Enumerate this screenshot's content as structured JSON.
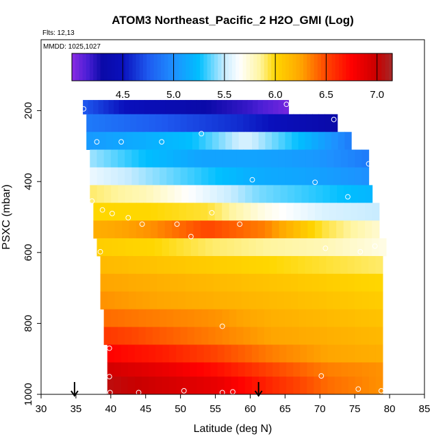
{
  "chart_data": {
    "type": "heatmap",
    "title": "ATOM3 Northeast_Pacific_2 H2O_GMI (Log)",
    "annotations": {
      "flights": "Flts: 12,13",
      "dates": "MMDD: 1025,1027"
    },
    "xlabel": "Latitude (deg N)",
    "ylabel": "PSXC (mbar)",
    "xlim": [
      30,
      85
    ],
    "ylim": [
      1000,
      0
    ],
    "x_ticks": [
      "30",
      "35",
      "40",
      "45",
      "50",
      "55",
      "60",
      "65",
      "70",
      "75",
      "80",
      "85"
    ],
    "y_ticks": [
      "200",
      "400",
      "600",
      "800",
      "1000"
    ],
    "colorbar": {
      "min": 4.0,
      "max": 7.15,
      "ticks": [
        "4.5",
        "5.0",
        "5.5",
        "6.0",
        "6.5",
        "7.0"
      ],
      "stops": [
        {
          "v": 4.0,
          "c": "#8a2be2"
        },
        {
          "v": 4.15,
          "c": "#4b1fd6"
        },
        {
          "v": 4.3,
          "c": "#0a0aa8"
        },
        {
          "v": 4.5,
          "c": "#0a10bc"
        },
        {
          "v": 4.75,
          "c": "#1e5af0"
        },
        {
          "v": 5.0,
          "c": "#1e90ff"
        },
        {
          "v": 5.25,
          "c": "#00bfff"
        },
        {
          "v": 5.5,
          "c": "#c8ecff"
        },
        {
          "v": 5.65,
          "c": "#ffffff"
        },
        {
          "v": 5.85,
          "c": "#fff5a0"
        },
        {
          "v": 6.0,
          "c": "#ffd700"
        },
        {
          "v": 6.25,
          "c": "#ffa500"
        },
        {
          "v": 6.5,
          "c": "#ff4500"
        },
        {
          "v": 6.75,
          "c": "#ff0000"
        },
        {
          "v": 7.0,
          "c": "#c80000"
        },
        {
          "v": 7.15,
          "c": "#a52a2a"
        }
      ]
    },
    "rows": [
      {
        "p_top": 170,
        "p_bot": 210,
        "lat_min": 36.0,
        "lat_max": 65.5,
        "values": [
          4.75,
          4.5,
          4.4,
          4.3,
          4.2,
          4.05
        ]
      },
      {
        "p_top": 210,
        "p_bot": 260,
        "lat_min": 36.5,
        "lat_max": 72.5,
        "values": [
          4.9,
          4.8,
          4.7,
          4.6,
          4.45,
          4.3
        ]
      },
      {
        "p_top": 260,
        "p_bot": 310,
        "lat_min": 36.5,
        "lat_max": 74.5,
        "values": [
          5.05,
          5.15,
          5.25,
          5.55,
          5.25,
          4.9
        ]
      },
      {
        "p_top": 310,
        "p_bot": 360,
        "lat_min": 37.0,
        "lat_max": 77.0,
        "values": [
          5.45,
          5.25,
          5.1,
          5.1,
          5.05,
          4.9
        ]
      },
      {
        "p_top": 360,
        "p_bot": 410,
        "lat_min": 37.0,
        "lat_max": 77.0,
        "values": [
          5.6,
          5.45,
          5.3,
          5.15,
          5.1,
          5.0
        ]
      },
      {
        "p_top": 410,
        "p_bot": 460,
        "lat_min": 37.0,
        "lat_max": 77.5,
        "values": [
          5.9,
          5.8,
          5.6,
          5.4,
          5.3,
          5.2
        ]
      },
      {
        "p_top": 460,
        "p_bot": 510,
        "lat_min": 37.5,
        "lat_max": 78.5,
        "values": [
          6.0,
          6.0,
          5.95,
          5.7,
          5.55,
          5.5
        ]
      },
      {
        "p_top": 510,
        "p_bot": 560,
        "lat_min": 37.5,
        "lat_max": 78.5,
        "values": [
          6.2,
          6.3,
          6.5,
          6.35,
          5.95,
          5.75
        ]
      },
      {
        "p_top": 560,
        "p_bot": 610,
        "lat_min": 38.0,
        "lat_max": 79.5,
        "values": [
          6.05,
          6.0,
          5.9,
          5.85,
          5.8,
          5.7
        ]
      },
      {
        "p_top": 610,
        "p_bot": 660,
        "lat_min": 38.5,
        "lat_max": 79.0,
        "values": [
          6.15,
          6.1,
          6.05,
          6.0,
          5.95,
          5.9
        ]
      },
      {
        "p_top": 660,
        "p_bot": 710,
        "lat_min": 38.5,
        "lat_max": 79.0,
        "values": [
          6.25,
          6.2,
          6.15,
          6.1,
          6.05,
          6.0
        ]
      },
      {
        "p_top": 710,
        "p_bot": 760,
        "lat_min": 38.5,
        "lat_max": 79.0,
        "values": [
          6.3,
          6.25,
          6.2,
          6.15,
          6.1,
          6.05
        ]
      },
      {
        "p_top": 760,
        "p_bot": 810,
        "lat_min": 39.0,
        "lat_max": 79.0,
        "values": [
          6.4,
          6.35,
          6.3,
          6.2,
          6.15,
          6.1
        ]
      },
      {
        "p_top": 810,
        "p_bot": 860,
        "lat_min": 39.0,
        "lat_max": 79.0,
        "values": [
          6.55,
          6.45,
          6.35,
          6.25,
          6.2,
          6.15
        ]
      },
      {
        "p_top": 860,
        "p_bot": 910,
        "lat_min": 39.5,
        "lat_max": 79.0,
        "values": [
          6.75,
          6.65,
          6.5,
          6.35,
          6.25,
          6.2
        ]
      },
      {
        "p_top": 910,
        "p_bot": 950,
        "lat_min": 39.5,
        "lat_max": 79.0,
        "values": [
          6.95,
          6.85,
          6.7,
          6.5,
          6.35,
          6.3
        ]
      },
      {
        "p_top": 950,
        "p_bot": 1000,
        "lat_min": 39.5,
        "lat_max": 79.0,
        "values": [
          7.05,
          6.95,
          6.85,
          6.6,
          6.4,
          6.3
        ]
      }
    ],
    "observations": [
      {
        "lat": 36.1,
        "p": 195
      },
      {
        "lat": 65.2,
        "p": 182
      },
      {
        "lat": 72.0,
        "p": 225
      },
      {
        "lat": 38.0,
        "p": 288
      },
      {
        "lat": 41.5,
        "p": 288
      },
      {
        "lat": 47.3,
        "p": 288
      },
      {
        "lat": 53.0,
        "p": 265
      },
      {
        "lat": 77.0,
        "p": 350
      },
      {
        "lat": 60.3,
        "p": 395
      },
      {
        "lat": 69.3,
        "p": 402
      },
      {
        "lat": 37.3,
        "p": 455
      },
      {
        "lat": 74.0,
        "p": 443
      },
      {
        "lat": 38.8,
        "p": 480
      },
      {
        "lat": 40.2,
        "p": 490
      },
      {
        "lat": 42.5,
        "p": 502
      },
      {
        "lat": 54.5,
        "p": 488
      },
      {
        "lat": 44.5,
        "p": 520
      },
      {
        "lat": 49.5,
        "p": 520
      },
      {
        "lat": 58.5,
        "p": 520
      },
      {
        "lat": 51.5,
        "p": 555
      },
      {
        "lat": 38.5,
        "p": 598
      },
      {
        "lat": 70.8,
        "p": 588
      },
      {
        "lat": 75.8,
        "p": 598
      },
      {
        "lat": 77.9,
        "p": 582
      },
      {
        "lat": 56.0,
        "p": 808
      },
      {
        "lat": 39.8,
        "p": 870
      },
      {
        "lat": 39.8,
        "p": 950
      },
      {
        "lat": 70.2,
        "p": 948
      },
      {
        "lat": 39.9,
        "p": 995
      },
      {
        "lat": 44.0,
        "p": 995
      },
      {
        "lat": 50.5,
        "p": 990
      },
      {
        "lat": 56.0,
        "p": 995
      },
      {
        "lat": 57.5,
        "p": 993
      },
      {
        "lat": 75.5,
        "p": 985
      },
      {
        "lat": 78.8,
        "p": 990
      }
    ],
    "markers": [
      {
        "type": "arrow-down",
        "lat": 34.8,
        "p": 1000
      },
      {
        "type": "arrow-down",
        "lat": 61.2,
        "p": 1000
      }
    ]
  }
}
